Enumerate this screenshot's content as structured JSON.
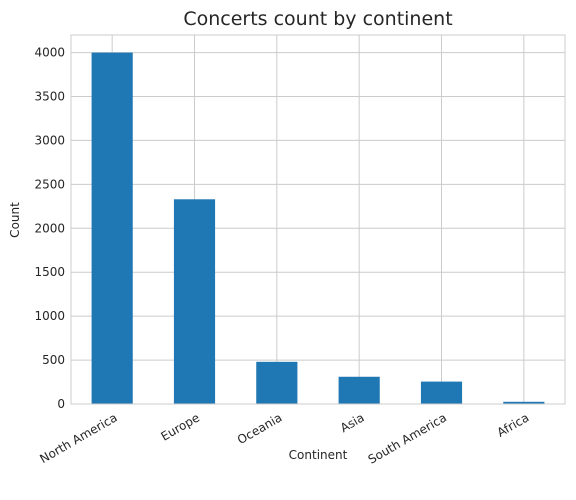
{
  "chart_data": {
    "type": "bar",
    "title": "Concerts count by continent",
    "xlabel": "Continent",
    "ylabel": "Count",
    "categories": [
      "North America",
      "Europe",
      "Oceania",
      "Asia",
      "South America",
      "Africa"
    ],
    "values": [
      4000,
      2330,
      480,
      310,
      255,
      25
    ],
    "ylim": [
      0,
      4200
    ],
    "yticks": [
      0,
      500,
      1000,
      1500,
      2000,
      2500,
      3000,
      3500,
      4000
    ],
    "grid": true,
    "bar_color": "#1f77b4"
  }
}
